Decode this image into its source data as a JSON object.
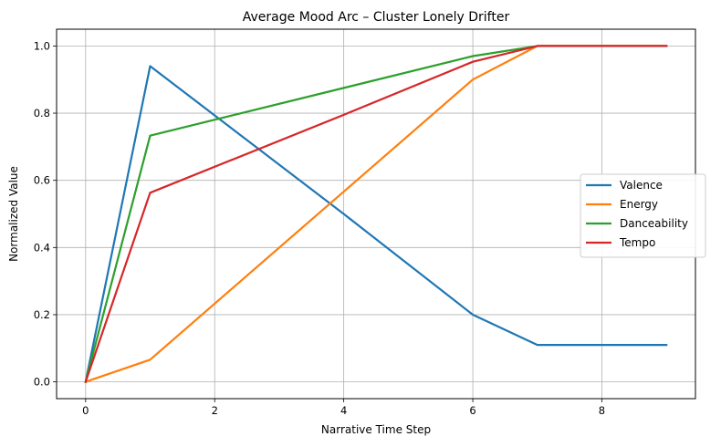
{
  "chart_data": {
    "type": "line",
    "title": "Average Mood Arc – Cluster Lonely Drifter",
    "xlabel": "Narrative Time Step",
    "ylabel": "Normalized Value",
    "xlim": [
      -0.45,
      9.45
    ],
    "ylim": [
      -0.05,
      1.05
    ],
    "xticks": [
      0,
      2,
      4,
      6,
      8
    ],
    "yticks": [
      0.0,
      0.2,
      0.4,
      0.6,
      0.8,
      1.0
    ],
    "grid": true,
    "legend_position": "center-right",
    "series": [
      {
        "name": "Valence",
        "color": "#1f77b4",
        "x": [
          0,
          1,
          4,
          6,
          7,
          9
        ],
        "y": [
          0.0,
          0.94,
          0.5,
          0.2,
          0.11,
          0.11
        ]
      },
      {
        "name": "Energy",
        "color": "#ff7f0e",
        "x": [
          0,
          1,
          6,
          7,
          9
        ],
        "y": [
          0.0,
          0.066,
          0.9,
          1.0,
          1.0
        ]
      },
      {
        "name": "Danceability",
        "color": "#2ca02c",
        "x": [
          0,
          1,
          6,
          7,
          9
        ],
        "y": [
          0.0,
          0.733,
          0.97,
          1.0,
          1.0
        ]
      },
      {
        "name": "Tempo",
        "color": "#d62728",
        "x": [
          0,
          1,
          4,
          6,
          7,
          9
        ],
        "y": [
          0.0,
          0.563,
          0.795,
          0.953,
          1.0,
          1.0
        ]
      }
    ]
  }
}
